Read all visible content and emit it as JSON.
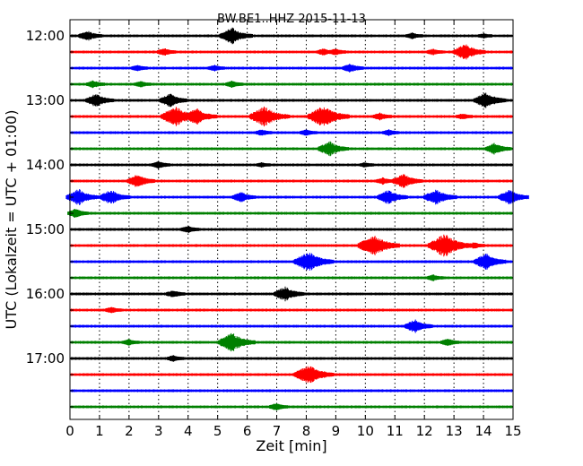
{
  "chart_data": {
    "type": "line",
    "title": "BW.BE1..HHZ 2015-11-13",
    "xlabel": "Zeit  [min]",
    "ylabel": "UTC (Lokalzeit = UTC + 01:00)",
    "xlim": [
      0,
      15
    ],
    "x_ticks": [
      0,
      1,
      2,
      3,
      4,
      5,
      6,
      7,
      8,
      9,
      10,
      11,
      12,
      13,
      14,
      15
    ],
    "x_tick_labels": [
      "0",
      "1",
      "2",
      "3",
      "4",
      "5",
      "6",
      "7",
      "8",
      "9",
      "10",
      "11",
      "12",
      "13",
      "14",
      "15"
    ],
    "y_tick_labels": [
      "12:00",
      "13:00",
      "14:00",
      "15:00",
      "16:00",
      "17:00"
    ],
    "vertical_grid": "dotted",
    "trace_colors": [
      "#000000",
      "#ff0000",
      "#0000ff",
      "#008000"
    ],
    "traces": [
      {
        "start": "11:45",
        "events": [
          {
            "t": 0.6,
            "a": 0.6
          },
          {
            "t": 5.5,
            "a": 1.0
          },
          {
            "t": 11.6,
            "a": 0.3
          },
          {
            "t": 14.0,
            "a": 0.2
          }
        ]
      },
      {
        "start": "12:00",
        "events": [
          {
            "t": 3.2,
            "a": 0.4
          },
          {
            "t": 8.6,
            "a": 0.35
          },
          {
            "t": 9.0,
            "a": 0.35
          },
          {
            "t": 12.3,
            "a": 0.3
          },
          {
            "t": 13.4,
            "a": 1.0
          }
        ]
      },
      {
        "start": "12:15",
        "events": [
          {
            "t": 2.3,
            "a": 0.3
          },
          {
            "t": 4.9,
            "a": 0.3
          },
          {
            "t": 9.5,
            "a": 0.5
          }
        ]
      },
      {
        "start": "12:30",
        "events": [
          {
            "t": 0.8,
            "a": 0.4
          },
          {
            "t": 2.4,
            "a": 0.3
          },
          {
            "t": 5.5,
            "a": 0.35
          }
        ]
      },
      {
        "start": "12:45",
        "events": [
          {
            "t": 0.9,
            "a": 0.8
          },
          {
            "t": 3.4,
            "a": 0.8
          },
          {
            "t": 14.1,
            "a": 1.0
          }
        ]
      },
      {
        "start": "13:00",
        "events": [
          {
            "t": 3.6,
            "a": 1.3
          },
          {
            "t": 4.3,
            "a": 1.0
          },
          {
            "t": 6.6,
            "a": 1.3
          },
          {
            "t": 8.6,
            "a": 1.4
          },
          {
            "t": 10.5,
            "a": 0.4
          },
          {
            "t": 13.3,
            "a": 0.3
          }
        ]
      },
      {
        "start": "13:15",
        "events": [
          {
            "t": 6.5,
            "a": 0.3
          },
          {
            "t": 8.0,
            "a": 0.3
          },
          {
            "t": 10.8,
            "a": 0.3
          }
        ]
      },
      {
        "start": "13:30",
        "events": [
          {
            "t": 8.8,
            "a": 0.9
          },
          {
            "t": 14.4,
            "a": 0.7
          }
        ]
      },
      {
        "start": "13:45",
        "events": [
          {
            "t": 3.0,
            "a": 0.4
          },
          {
            "t": 6.5,
            "a": 0.2
          },
          {
            "t": 10.0,
            "a": 0.2
          }
        ]
      },
      {
        "start": "14:00",
        "events": [
          {
            "t": 2.3,
            "a": 0.8
          },
          {
            "t": 10.6,
            "a": 0.35
          },
          {
            "t": 11.3,
            "a": 0.9
          }
        ]
      },
      {
        "start": "14:15",
        "events": [
          {
            "t": 0.3,
            "a": 1.0
          },
          {
            "t": 1.4,
            "a": 0.9
          },
          {
            "t": 5.8,
            "a": 0.6
          },
          {
            "t": 10.8,
            "a": 0.9
          },
          {
            "t": 12.4,
            "a": 1.0
          },
          {
            "t": 14.9,
            "a": 0.9
          }
        ]
      },
      {
        "start": "14:30",
        "events": [
          {
            "t": 0.2,
            "a": 0.5
          }
        ]
      },
      {
        "start": "14:45",
        "events": [
          {
            "t": 4.0,
            "a": 0.4
          }
        ]
      },
      {
        "start": "15:00",
        "events": [
          {
            "t": 10.3,
            "a": 1.4
          },
          {
            "t": 12.7,
            "a": 1.5
          },
          {
            "t": 13.7,
            "a": 0.3
          }
        ]
      },
      {
        "start": "15:15",
        "events": [
          {
            "t": 8.1,
            "a": 1.3
          },
          {
            "t": 14.1,
            "a": 1.0
          }
        ]
      },
      {
        "start": "15:30",
        "events": [
          {
            "t": 12.3,
            "a": 0.3
          }
        ]
      },
      {
        "start": "15:45",
        "events": [
          {
            "t": 3.5,
            "a": 0.4
          },
          {
            "t": 7.3,
            "a": 0.9
          }
        ]
      },
      {
        "start": "16:00",
        "events": [
          {
            "t": 1.4,
            "a": 0.3
          }
        ]
      },
      {
        "start": "16:15",
        "events": [
          {
            "t": 11.7,
            "a": 0.8
          }
        ]
      },
      {
        "start": "16:30",
        "events": [
          {
            "t": 2.0,
            "a": 0.3
          },
          {
            "t": 5.5,
            "a": 1.2
          },
          {
            "t": 12.8,
            "a": 0.4
          }
        ]
      },
      {
        "start": "16:45",
        "events": [
          {
            "t": 3.5,
            "a": 0.3
          }
        ]
      },
      {
        "start": "17:00",
        "events": [
          {
            "t": 8.1,
            "a": 1.3
          }
        ]
      },
      {
        "start": "17:15",
        "events": []
      },
      {
        "start": "17:30",
        "events": [
          {
            "t": 7.0,
            "a": 0.4
          }
        ]
      }
    ]
  }
}
